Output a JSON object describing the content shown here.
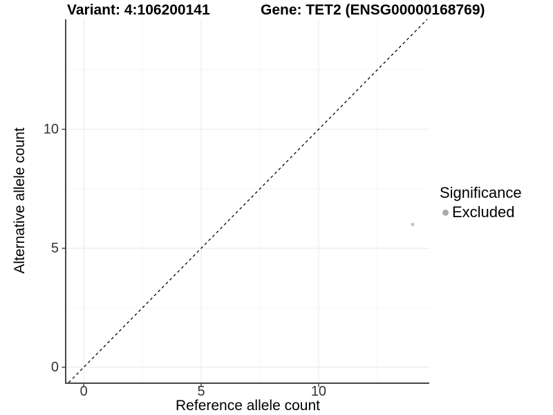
{
  "chart_data": {
    "type": "scatter",
    "titles": {
      "variant": "Variant: 4:106200141",
      "gene": "Gene: TET2 (ENSG00000168769)"
    },
    "xlabel": "Reference allele count",
    "ylabel": "Alternative allele count",
    "xlim": [
      -0.74,
      14.71
    ],
    "ylim": [
      -0.64,
      14.62
    ],
    "x_ticks": [
      0,
      5,
      10
    ],
    "y_ticks": [
      0,
      5,
      10
    ],
    "x_minor_gridlines": [
      2.5,
      7.5,
      12.5
    ],
    "y_minor_gridlines": [
      2.5,
      7.5,
      12.5
    ],
    "grid": "major+minor",
    "aspect": "equal",
    "legend_position": "right",
    "identity_line": {
      "description": "y = x",
      "style": "dashed",
      "color": "#000000"
    },
    "points": [
      {
        "x": 14,
        "y": 6,
        "significance": "Excluded",
        "color": "#c4c4c4",
        "radius": 2.5
      }
    ],
    "legend": {
      "title": "Significance",
      "items": [
        {
          "label": "Excluded",
          "color": "#aaaaaa"
        }
      ]
    },
    "colors": {
      "axis_line": "#464646",
      "grid_major": "#ebebeb",
      "grid_minor": "#f5f5f5",
      "tick_label": "#333333",
      "title": "#000000"
    }
  }
}
